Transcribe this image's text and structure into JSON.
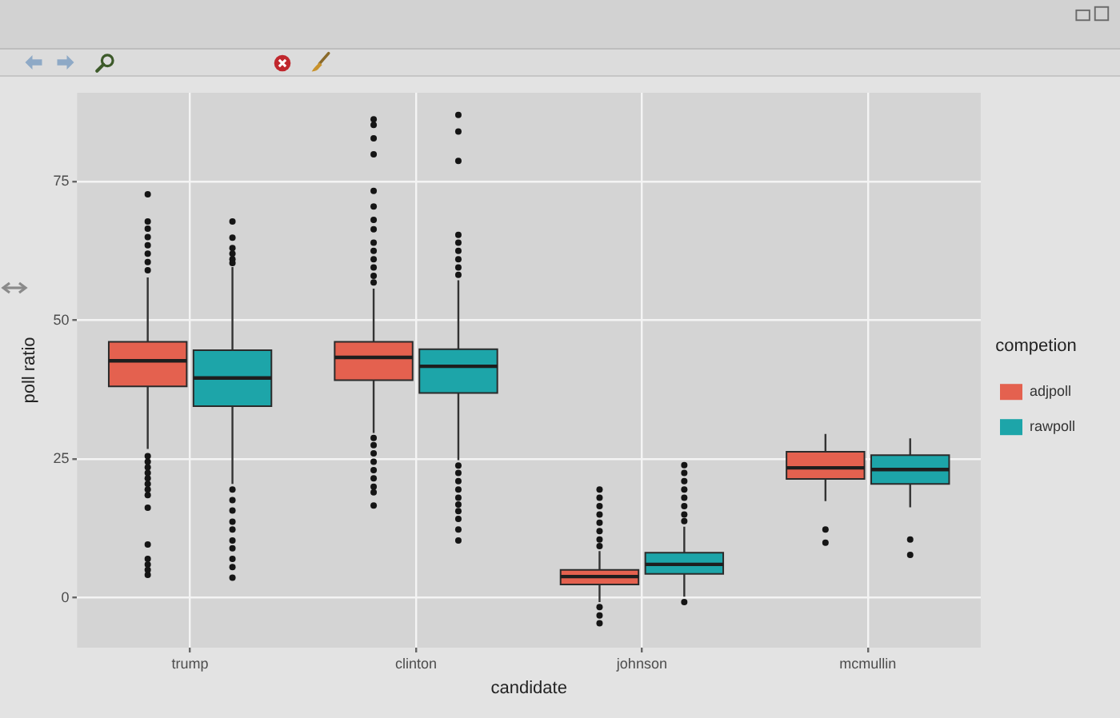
{
  "chart_data": {
    "type": "box",
    "xlabel": "candidate",
    "ylabel": "poll ratio",
    "legend_title": "competion",
    "categories": [
      "trump",
      "clinton",
      "johnson",
      "mcmullin"
    ],
    "series": [
      {
        "name": "adjpoll",
        "color": "#e4614f",
        "boxes": [
          {
            "low": 26.8,
            "q1": 38.1,
            "median": 42.7,
            "q3": 46.1,
            "high": 57.7,
            "outliers": [
              72.7,
              67.8,
              66.5,
              65,
              63.5,
              62,
              60.5,
              59,
              25.5,
              24.5,
              23.5,
              22.5,
              21.5,
              20.5,
              19.5,
              18.5,
              16.2,
              9.6,
              7,
              6,
              5,
              4.1
            ]
          },
          {
            "low": 29.7,
            "q1": 39.2,
            "median": 43.3,
            "q3": 46.1,
            "high": 55.7,
            "outliers": [
              86.2,
              85.2,
              82.8,
              79.9,
              73.3,
              70.5,
              68.1,
              66.4,
              64,
              62.5,
              61,
              59.5,
              58,
              56.8,
              28.8,
              27.5,
              26,
              24.5,
              23,
              21.5,
              20,
              19,
              16.6
            ]
          },
          {
            "low": -0.8,
            "q1": 2.4,
            "median": 3.8,
            "q3": 5,
            "high": 8.4,
            "outliers": [
              19.5,
              18,
              16.5,
              15,
              13.5,
              12,
              10.5,
              9.3,
              -1.7,
              -3.2,
              -4.6
            ]
          },
          {
            "low": 17.4,
            "q1": 21.4,
            "median": 23.4,
            "q3": 26.3,
            "high": 29.5,
            "outliers": [
              12.3,
              9.9
            ]
          }
        ]
      },
      {
        "name": "rawpoll",
        "color": "#1da5a9",
        "boxes": [
          {
            "low": 20.5,
            "q1": 34.5,
            "median": 39.6,
            "q3": 44.6,
            "high": 59.6,
            "outliers": [
              67.8,
              64.9,
              63,
              62,
              61,
              60.3,
              19.5,
              17.6,
              15.7,
              13.7,
              12.3,
              10.3,
              8.9,
              7,
              5.5,
              3.6
            ]
          },
          {
            "low": 24.8,
            "q1": 36.9,
            "median": 41.7,
            "q3": 44.8,
            "high": 57.2,
            "outliers": [
              87,
              84,
              78.7,
              65.4,
              64,
              62.5,
              61,
              59.5,
              58.2,
              23.8,
              22.5,
              21,
              19.5,
              18,
              16.8,
              15.6,
              14.2,
              12.3,
              10.3
            ]
          },
          {
            "low": 0.2,
            "q1": 4.3,
            "median": 6,
            "q3": 8.1,
            "high": 12.8,
            "outliers": [
              23.9,
              22.5,
              21,
              19.5,
              18,
              16.5,
              15,
              13.8,
              -0.8
            ]
          },
          {
            "low": 16.3,
            "q1": 20.5,
            "median": 23.1,
            "q3": 25.7,
            "high": 28.7,
            "outliers": [
              10.5,
              7.7
            ]
          }
        ]
      }
    ],
    "ylim": [
      -9,
      91
    ],
    "yticks": [
      0,
      25,
      50,
      75
    ],
    "grid": true,
    "legend": "right"
  }
}
